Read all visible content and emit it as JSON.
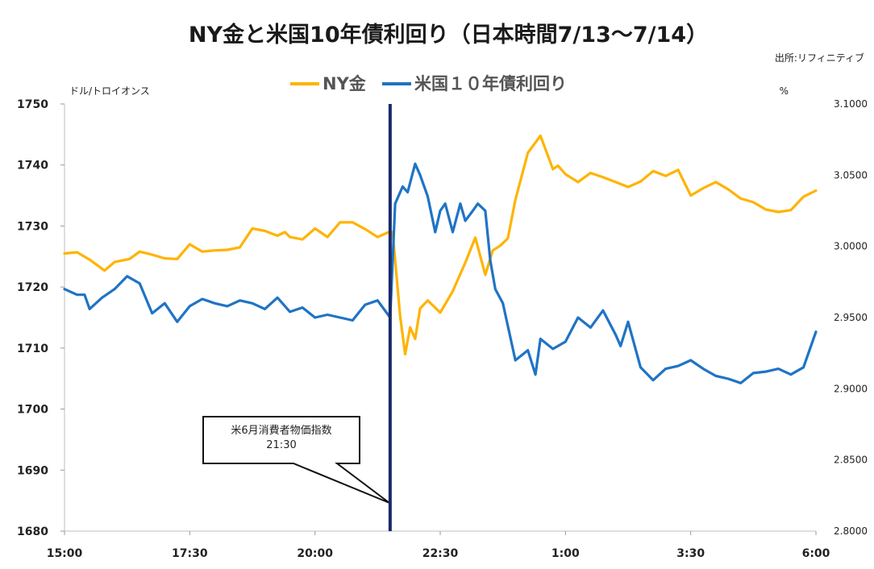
{
  "chart_data": {
    "type": "line",
    "title": "NY金と米国10年債利回り（日本時間7/13〜7/14）",
    "source": "出所:リフィニティブ",
    "y_left_unit": "ドル/トロイオンス",
    "y_right_unit": "%",
    "x_tick_labels": [
      "15:00",
      "17:30",
      "20:00",
      "22:30",
      "1:00",
      "3:30",
      "6:00"
    ],
    "x_range": [
      0,
      15
    ],
    "y_left_ticks": [
      "1680",
      "1690",
      "1700",
      "1710",
      "1720",
      "1730",
      "1740",
      "1750"
    ],
    "y_left_range": [
      1680,
      1750
    ],
    "y_right_ticks": [
      "2.8000",
      "2.8500",
      "2.9000",
      "2.9500",
      "3.0000",
      "3.0500",
      "3.1000"
    ],
    "y_right_range": [
      2.8,
      3.1
    ],
    "grid": false,
    "legend_position": "top",
    "event": {
      "x": 6.5,
      "label": "米6月消費者物価指数",
      "time": "21:30"
    },
    "series": [
      {
        "name": "NY金",
        "axis": "left",
        "color": "#FFB300",
        "x": [
          0,
          0.25,
          0.5,
          0.8,
          1.0,
          1.3,
          1.5,
          1.75,
          2.0,
          2.25,
          2.5,
          2.75,
          3.0,
          3.25,
          3.5,
          3.75,
          4.0,
          4.25,
          4.4,
          4.5,
          4.75,
          5.0,
          5.25,
          5.5,
          5.75,
          6.0,
          6.25,
          6.5,
          6.55,
          6.7,
          6.8,
          6.9,
          7.0,
          7.1,
          7.25,
          7.5,
          7.75,
          8.0,
          8.2,
          8.4,
          8.55,
          8.7,
          8.85,
          9.0,
          9.25,
          9.5,
          9.75,
          9.85,
          10.0,
          10.25,
          10.5,
          10.75,
          11.0,
          11.25,
          11.5,
          11.75,
          12.0,
          12.25,
          12.5,
          12.75,
          13.0,
          13.25,
          13.5,
          13.75,
          14.0,
          14.25,
          14.5,
          14.75,
          15.0
        ],
        "values": [
          1725.5,
          1725.7,
          1724.5,
          1722.7,
          1724.1,
          1724.6,
          1725.8,
          1725.3,
          1724.7,
          1724.6,
          1727.0,
          1725.8,
          1726.0,
          1726.1,
          1726.5,
          1729.6,
          1729.2,
          1728.4,
          1729.0,
          1728.2,
          1727.8,
          1729.6,
          1728.2,
          1730.6,
          1730.6,
          1729.5,
          1728.2,
          1729.1,
          1729.0,
          1715.2,
          1709.0,
          1713.4,
          1711.5,
          1716.5,
          1717.8,
          1715.8,
          1719.3,
          1724.0,
          1728.1,
          1722.0,
          1726.0,
          1726.8,
          1728.0,
          1734.3,
          1742.0,
          1744.8,
          1739.3,
          1739.9,
          1738.5,
          1737.2,
          1738.7,
          1738.0,
          1737.2,
          1736.4,
          1737.3,
          1739.0,
          1738.2,
          1739.2,
          1735.0,
          1736.2,
          1737.2,
          1736.0,
          1734.5,
          1733.9,
          1732.7,
          1732.3,
          1732.6,
          1734.8,
          1735.8
        ]
      },
      {
        "name": "米国１０年債利回り",
        "axis": "right",
        "color": "#1F74C4",
        "x": [
          0,
          0.25,
          0.4,
          0.5,
          0.75,
          1.0,
          1.25,
          1.5,
          1.75,
          2.0,
          2.25,
          2.5,
          2.75,
          3.0,
          3.25,
          3.5,
          3.75,
          4.0,
          4.25,
          4.5,
          4.75,
          5.0,
          5.25,
          5.5,
          5.75,
          6.0,
          6.25,
          6.5,
          6.6,
          6.75,
          6.85,
          7.0,
          7.1,
          7.25,
          7.4,
          7.5,
          7.6,
          7.75,
          7.9,
          8.0,
          8.15,
          8.25,
          8.4,
          8.5,
          8.6,
          8.75,
          9.0,
          9.25,
          9.4,
          9.5,
          9.75,
          10.0,
          10.25,
          10.5,
          10.75,
          11.0,
          11.1,
          11.25,
          11.5,
          11.75,
          12.0,
          12.25,
          12.5,
          12.75,
          13.0,
          13.25,
          13.5,
          13.75,
          14.0,
          14.25,
          14.5,
          14.75,
          15.0
        ],
        "values": [
          2.97,
          2.966,
          2.966,
          2.956,
          2.964,
          2.97,
          2.979,
          2.974,
          2.953,
          2.96,
          2.947,
          2.958,
          2.963,
          2.96,
          2.958,
          2.962,
          2.96,
          2.956,
          2.964,
          2.954,
          2.957,
          2.95,
          2.952,
          2.95,
          2.948,
          2.959,
          2.962,
          2.95,
          3.03,
          3.042,
          3.038,
          3.058,
          3.05,
          3.035,
          3.01,
          3.025,
          3.03,
          3.01,
          3.03,
          3.018,
          3.025,
          3.03,
          3.025,
          2.99,
          2.97,
          2.96,
          2.92,
          2.927,
          2.91,
          2.935,
          2.928,
          2.933,
          2.95,
          2.943,
          2.955,
          2.938,
          2.93,
          2.947,
          2.915,
          2.906,
          2.914,
          2.916,
          2.92,
          2.914,
          2.909,
          2.907,
          2.904,
          2.911,
          2.912,
          2.914,
          2.91,
          2.915,
          2.94
        ]
      }
    ]
  }
}
